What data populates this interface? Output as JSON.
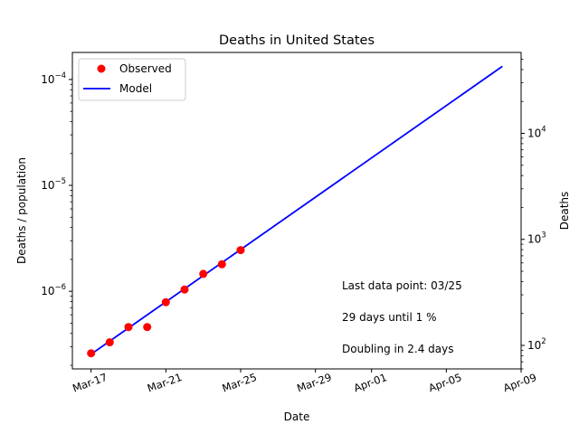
{
  "chart_data": {
    "type": "line",
    "title": "Deaths in United States",
    "xlabel": "Date",
    "ylabel": "Deaths / population",
    "ylabel_right": "Deaths",
    "yscale": "log",
    "xlim": [
      "2020-03-16",
      "2020-04-09"
    ],
    "ylim": [
      1.85e-07,
      0.00018
    ],
    "ylim_right": [
      60,
      58000
    ],
    "x_ticks": [
      {
        "date": "2020-03-17",
        "label": "Mar-17"
      },
      {
        "date": "2020-03-21",
        "label": "Mar-21"
      },
      {
        "date": "2020-03-25",
        "label": "Mar-25"
      },
      {
        "date": "2020-03-29",
        "label": "Mar-29"
      },
      {
        "date": "2020-04-01",
        "label": "Apr-01"
      },
      {
        "date": "2020-04-05",
        "label": "Apr-05"
      },
      {
        "date": "2020-04-09",
        "label": "Apr-09"
      }
    ],
    "y_ticks": [
      {
        "value": 1e-06,
        "mantissa": "10",
        "exp": "−6"
      },
      {
        "value": 1e-05,
        "mantissa": "10",
        "exp": "−5"
      },
      {
        "value": 0.0001,
        "mantissa": "10",
        "exp": "−4"
      }
    ],
    "y_ticks_right": [
      {
        "value": 100,
        "mantissa": "10",
        "exp": "2"
      },
      {
        "value": 1000,
        "mantissa": "10",
        "exp": "3"
      },
      {
        "value": 10000,
        "mantissa": "10",
        "exp": "4"
      }
    ],
    "series": [
      {
        "name": "Observed",
        "kind": "scatter",
        "color": "#ff0000",
        "x": [
          "2020-03-17",
          "2020-03-18",
          "2020-03-19",
          "2020-03-20",
          "2020-03-21",
          "2020-03-22",
          "2020-03-23",
          "2020-03-24",
          "2020-03-25"
        ],
        "y": [
          2.6e-07,
          3.3e-07,
          4.6e-07,
          4.6e-07,
          7.9e-07,
          1.04e-06,
          1.46e-06,
          1.8e-06,
          2.45e-06
        ]
      },
      {
        "name": "Model",
        "kind": "line",
        "color": "#0000ff",
        "x": [
          "2020-03-17",
          "2020-04-08"
        ],
        "y": [
          2.55e-07,
          0.000133
        ]
      }
    ],
    "legend": {
      "position": "top-left",
      "entries": [
        "Observed",
        "Model"
      ]
    },
    "annotations": [
      "Last data point: 03/25",
      "29 days until 1 %",
      "Doubling in 2.4 days"
    ],
    "grid": false
  }
}
